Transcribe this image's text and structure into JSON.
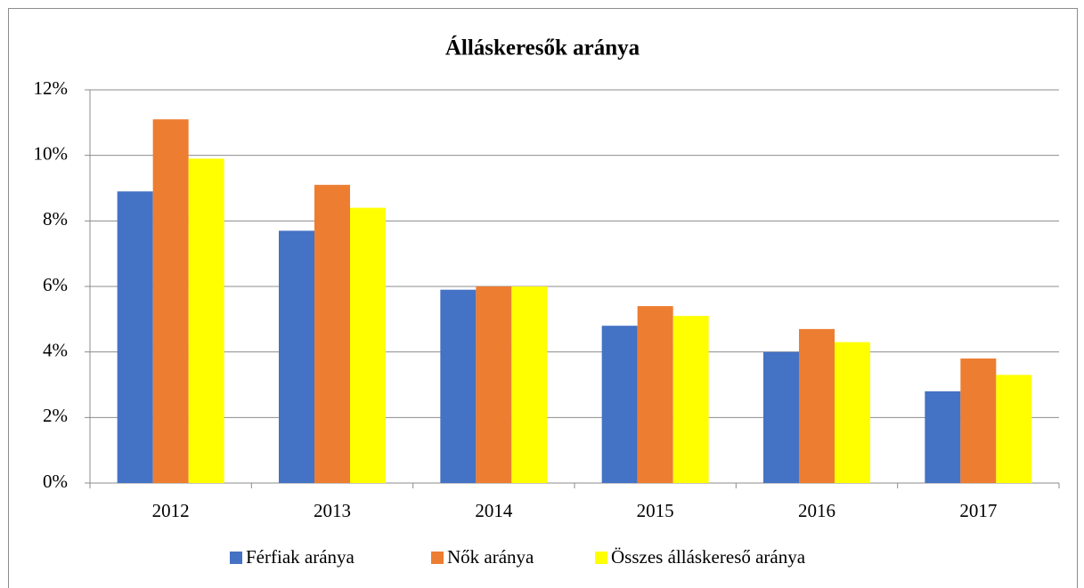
{
  "chart_data": {
    "type": "bar",
    "title": "Álláskeresők aránya",
    "categories": [
      "2012",
      "2013",
      "2014",
      "2015",
      "2016",
      "2017"
    ],
    "series": [
      {
        "name": "Férfiak aránya",
        "color": "#4472c4",
        "values": [
          8.9,
          7.7,
          5.9,
          4.8,
          4.0,
          2.8
        ]
      },
      {
        "name": "Nők aránya",
        "color": "#ed7d31",
        "values": [
          11.1,
          9.1,
          6.0,
          5.4,
          4.7,
          3.8
        ]
      },
      {
        "name": "Összes álláskereső aránya",
        "color": "#ffff00",
        "values": [
          9.9,
          8.4,
          6.0,
          5.1,
          4.3,
          3.3
        ]
      }
    ],
    "ylim": [
      0,
      12
    ],
    "yticks": [
      {
        "value": 0,
        "label": "0%"
      },
      {
        "value": 2,
        "label": "2%"
      },
      {
        "value": 4,
        "label": "4%"
      },
      {
        "value": 6,
        "label": "6%"
      },
      {
        "value": 8,
        "label": "8%"
      },
      {
        "value": 10,
        "label": "10%"
      },
      {
        "value": 12,
        "label": "12%"
      }
    ],
    "grid": true,
    "legend": "bottom"
  }
}
